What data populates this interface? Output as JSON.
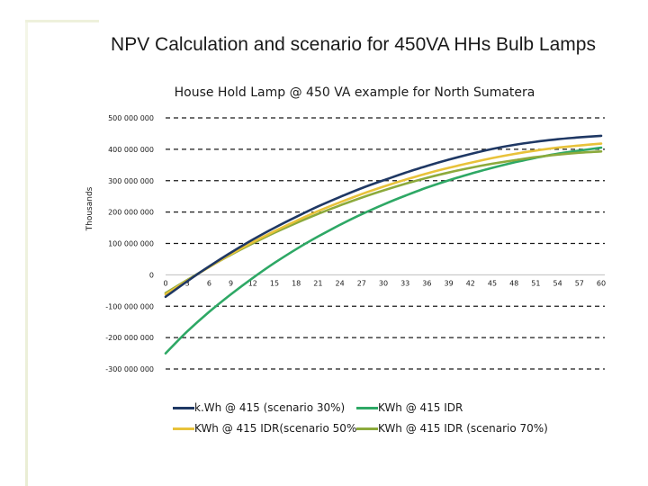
{
  "slide": {
    "title": "NPV Calculation and scenario for 450VA HHs Bulb Lamps"
  },
  "chart_data": {
    "type": "line",
    "title": "House Hold Lamp @ 450 VA example for North Sumatera",
    "ylabel": "Thousands",
    "xlabel": "",
    "x": [
      0,
      3,
      6,
      9,
      12,
      15,
      18,
      21,
      24,
      27,
      30,
      33,
      36,
      39,
      42,
      45,
      48,
      51,
      54,
      57,
      60
    ],
    "x_tick_labels": [
      "0",
      "3",
      "6",
      "9",
      "12",
      "15",
      "18",
      "21",
      "24",
      "27",
      "30",
      "33",
      "36",
      "39",
      "42",
      "45",
      "48",
      "51",
      "54",
      "57",
      "60"
    ],
    "y_tick_values": [
      500000000,
      400000000,
      300000000,
      200000000,
      100000000,
      0,
      -100000000,
      -200000000,
      -300000000
    ],
    "y_tick_labels": [
      "500 000 000",
      "400 000 000",
      "300 000 000",
      "200 000 000",
      "100 000 000",
      "0",
      "-100 000 000",
      "-200 000 000",
      "-300 000 000"
    ],
    "ylim": [
      -300000000,
      500000000
    ],
    "xlim": [
      0,
      60
    ],
    "grid": "horizontal dashed",
    "legend_position": "bottom",
    "series": [
      {
        "name": "k.Wh @ 415 (scenario 30%)",
        "color": "#1f3864",
        "values": [
          -70000000,
          -20000000,
          27000000,
          71000000,
          112000000,
          150000000,
          185000000,
          218000000,
          248000000,
          276000000,
          301000000,
          325000000,
          347000000,
          367000000,
          385000000,
          401000000,
          414000000,
          424000000,
          432000000,
          438000000,
          443000000
        ]
      },
      {
        "name": "KWh @ 415 IDR",
        "color": "#2ea865",
        "values": [
          -250000000,
          -180000000,
          -118000000,
          -62000000,
          -10000000,
          38000000,
          82000000,
          122000000,
          159000000,
          193000000,
          224000000,
          252000000,
          278000000,
          301000000,
          322000000,
          341000000,
          358000000,
          373000000,
          386000000,
          396000000,
          405000000
        ]
      },
      {
        "name": "KWh @ 415 IDR(scenario 50%",
        "color": "#e8c23a",
        "values": [
          -62000000,
          -18000000,
          25000000,
          66000000,
          104000000,
          139000000,
          172000000,
          203000000,
          231000000,
          257000000,
          281000000,
          303000000,
          323000000,
          341000000,
          357000000,
          372000000,
          385000000,
          396000000,
          405000000,
          412000000,
          418000000
        ]
      },
      {
        "name": "KWh @ 415 IDR (scenario 70%)",
        "color": "#8caa3c",
        "values": [
          -58000000,
          -16000000,
          25000000,
          64000000,
          100000000,
          134000000,
          165000000,
          194000000,
          221000000,
          246000000,
          269000000,
          290000000,
          309000000,
          326000000,
          341000000,
          354000000,
          365000000,
          375000000,
          383000000,
          389000000,
          393000000
        ]
      }
    ]
  }
}
